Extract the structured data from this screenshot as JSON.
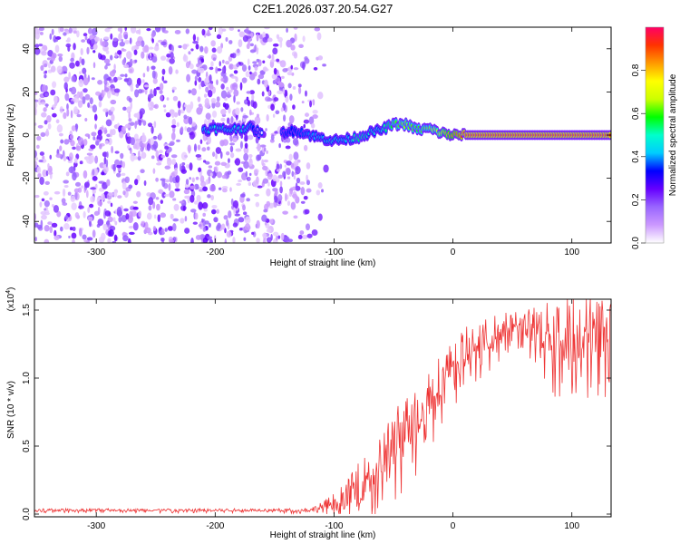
{
  "title": "C2E1.2026.037.20.54.G27",
  "chart_data": [
    {
      "type": "heatmap",
      "title": "C2E1.2026.037.20.54.G27",
      "xlabel": "Height of straight line (km)",
      "ylabel": "Frequency (Hz)",
      "xlim": [
        -352,
        133
      ],
      "ylim": [
        -50,
        50
      ],
      "xticks": [
        -300,
        -200,
        -100,
        0,
        100
      ],
      "xtick_labels": [
        "-300",
        "-200",
        "-100",
        "0",
        "100"
      ],
      "yticks": [
        -40,
        -20,
        0,
        20,
        40
      ],
      "ytick_labels": [
        "-40",
        "-20",
        "0",
        "20",
        "40"
      ],
      "noise_region_x": [
        -352,
        -105
      ],
      "signal_trace": {
        "x": [
          -210,
          -200,
          -190,
          -180,
          -170,
          -160,
          -150,
          -140,
          -130,
          -120,
          -110,
          -100,
          -90,
          -80,
          -70,
          -60,
          -50,
          -40,
          -30,
          -20,
          -10,
          0,
          10,
          50,
          100,
          133
        ],
        "freq": [
          2.5,
          3,
          2.5,
          3,
          3.5,
          0,
          0,
          1.5,
          2,
          0,
          -1.5,
          -2.5,
          -2,
          -1,
          1,
          2.5,
          5,
          5,
          2.5,
          3,
          1,
          0,
          0,
          0,
          0,
          0
        ],
        "amplitude": [
          0.45,
          0.5,
          0.45,
          0.5,
          0.4,
          0,
          0,
          0.3,
          0.35,
          0.4,
          0.45,
          0.5,
          0.45,
          0.55,
          0.5,
          0.5,
          0.6,
          0.65,
          0.6,
          0.65,
          0.75,
          0.85,
          0.95,
          0.95,
          0.95,
          0.95
        ]
      },
      "colorbar": {
        "label": "Normalized spectral amplitude",
        "range": [
          0,
          1
        ],
        "ticks": [
          0.0,
          0.2,
          0.4,
          0.6,
          0.8
        ],
        "tick_labels": [
          "0.0",
          "0.2",
          "0.4",
          "0.6",
          "0.8"
        ],
        "colors": [
          "#ffffff",
          "#cc99ff",
          "#9966ff",
          "#6600ff",
          "#0000ff",
          "#00ccff",
          "#00ffcc",
          "#00ff00",
          "#ccff00",
          "#ffff00",
          "#ff9900",
          "#ff3300",
          "#ff0066"
        ]
      }
    },
    {
      "type": "line",
      "xlabel": "Height of straight line (km)",
      "ylabel": "SNR (10 * v/v)",
      "y_multiplier_label": "(x10",
      "y_multiplier_exp": "4",
      "y_multiplier_close": ")",
      "xlim": [
        -352,
        133
      ],
      "ylim": [
        -0.02,
        1.58
      ],
      "xticks": [
        -300,
        -200,
        -100,
        0,
        100
      ],
      "xtick_labels": [
        "-300",
        "-200",
        "-100",
        "0",
        "100"
      ],
      "yticks": [
        0.0,
        0.5,
        1.0,
        1.5
      ],
      "ytick_labels": [
        "0.0",
        "0.5",
        "1.0",
        "1.5"
      ],
      "line_color": "#ee3333",
      "series": [
        {
          "name": "SNR",
          "x": [
            -352,
            -300,
            -200,
            -150,
            -120,
            -110,
            -100,
            -90,
            -80,
            -70,
            -60,
            -50,
            -40,
            -30,
            -20,
            -10,
            0,
            10,
            20,
            30,
            40,
            50,
            60,
            70,
            80,
            90,
            100,
            110,
            120,
            133
          ],
          "y": [
            0.03,
            0.03,
            0.03,
            0.03,
            0.03,
            0.05,
            0.09,
            0.14,
            0.22,
            0.3,
            0.42,
            0.55,
            0.65,
            0.75,
            0.9,
            1.0,
            1.12,
            1.22,
            1.28,
            1.32,
            1.36,
            1.4,
            1.4,
            1.38,
            1.36,
            1.35,
            1.36,
            1.38,
            1.37,
            1.4
          ],
          "spread": [
            0.01,
            0.01,
            0.01,
            0.01,
            0.015,
            0.04,
            0.07,
            0.1,
            0.15,
            0.18,
            0.2,
            0.22,
            0.22,
            0.22,
            0.2,
            0.18,
            0.16,
            0.15,
            0.14,
            0.13,
            0.12,
            0.1,
            0.1,
            0.15,
            0.2,
            0.25,
            0.25,
            0.25,
            0.25,
            0.25
          ]
        }
      ]
    }
  ]
}
